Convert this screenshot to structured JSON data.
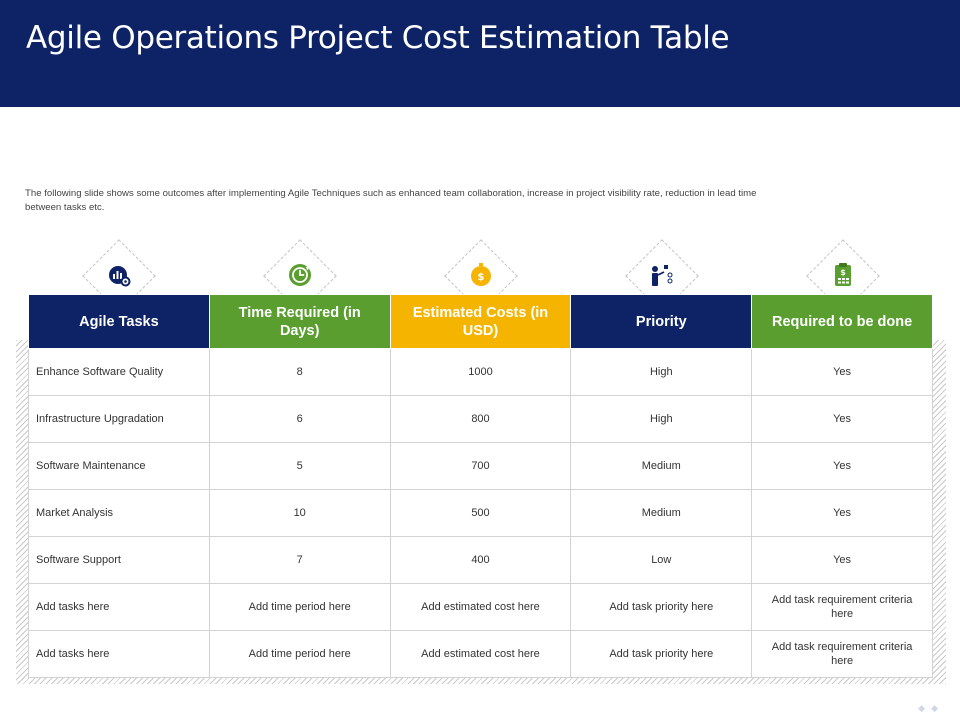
{
  "slide": {
    "title": "Agile Operations Project Cost Estimation Table",
    "description": "The following slide shows some outcomes after implementing  Agile Techniques such as enhanced team collaboration, increase in project visibility rate, reduction in lead time between tasks etc."
  },
  "colors": {
    "navy": "#0d2366",
    "green": "#5a9e2f",
    "yellow": "#f5b400"
  },
  "icons": [
    "analytics-gear-icon",
    "clock-refresh-icon",
    "dollar-coin-icon",
    "presenter-checklist-icon",
    "clipboard-dollar-icon"
  ],
  "table": {
    "headers": [
      "Agile Tasks",
      "Time Required (in Days)",
      "Estimated Costs  (in USD)",
      "Priority",
      "Required to be done"
    ],
    "rows": [
      [
        "Enhance Software Quality",
        "8",
        "1000",
        "High",
        "Yes"
      ],
      [
        "Infrastructure Upgradation",
        "6",
        "800",
        "High",
        "Yes"
      ],
      [
        "Software Maintenance",
        "5",
        "700",
        "Medium",
        "Yes"
      ],
      [
        "Market Analysis",
        "10",
        "500",
        "Medium",
        "Yes"
      ],
      [
        "Software Support",
        "7",
        "400",
        "Low",
        "Yes"
      ],
      [
        "Add tasks here",
        "Add time period here",
        "Add estimated cost here",
        "Add task priority here",
        "Add task requirement criteria here"
      ],
      [
        "Add tasks here",
        "Add time period here",
        "Add estimated cost here",
        "Add task priority here",
        "Add task requirement criteria here"
      ]
    ]
  }
}
